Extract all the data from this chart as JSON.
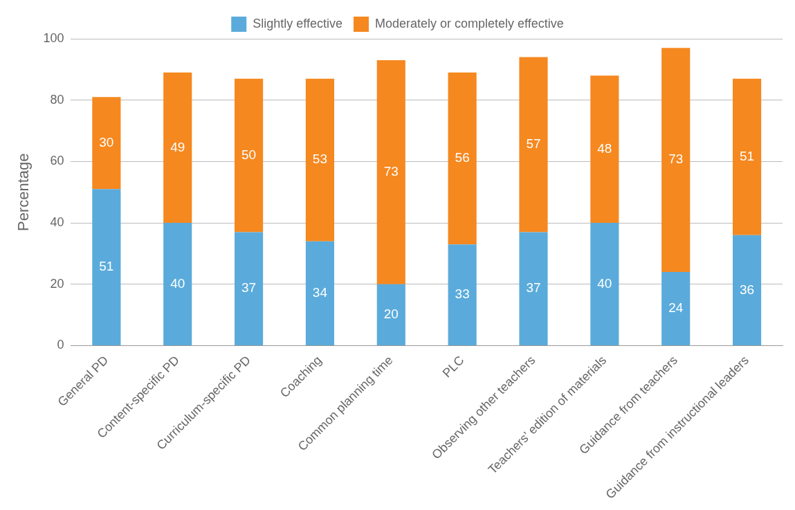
{
  "chart_data": {
    "type": "bar",
    "stacked": true,
    "ylabel": "Percentage",
    "categories": [
      "General PD",
      "Content-specific PD",
      "Curriculum-specific PD",
      "Coaching",
      "Common planning time",
      "PLC",
      "Observing other teachers",
      "Teachers’ edition of materials",
      "Guidance from teachers",
      "Guidance from instructional leaders"
    ],
    "series": [
      {
        "name": "Slightly effective",
        "color": "#5aabdb",
        "values": [
          51,
          40,
          37,
          34,
          20,
          33,
          37,
          40,
          24,
          36
        ]
      },
      {
        "name": "Moderately or completely effective",
        "color": "#f5881f",
        "values": [
          30,
          49,
          50,
          53,
          73,
          56,
          57,
          48,
          73,
          51
        ]
      }
    ],
    "ylim": [
      0,
      100
    ],
    "yticks": [
      0,
      20,
      40,
      60,
      80,
      100
    ],
    "grid": "y",
    "legend": "top",
    "data_labels": true
  }
}
